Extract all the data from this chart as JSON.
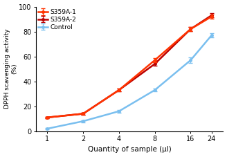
{
  "x": [
    1,
    2,
    4,
    8,
    16,
    24
  ],
  "s359a1_y": [
    11,
    14,
    33,
    57,
    82,
    92
  ],
  "s359a1_err": [
    0.5,
    0.8,
    1.2,
    1.5,
    1.5,
    1.8
  ],
  "s359a2_y": [
    11,
    14,
    33,
    54,
    82,
    93
  ],
  "s359a2_err": [
    0.5,
    0.8,
    1.2,
    1.5,
    1.5,
    1.8
  ],
  "control_y": [
    2,
    8,
    16,
    33,
    57,
    77
  ],
  "control_err": [
    0.4,
    0.8,
    1.0,
    1.0,
    2.2,
    1.5
  ],
  "s359a1_color": "#FF3300",
  "s359a2_color": "#BB0000",
  "control_color": "#7ABFEF",
  "xlabel": "Quantity of sample (μl)",
  "ylabel": "DPPH scavenging activity\n(%)",
  "ylim": [
    0,
    100
  ],
  "yticks": [
    0,
    20,
    40,
    60,
    80,
    100
  ],
  "legend_labels": [
    "S359A-1",
    "S359A-2",
    "Control"
  ],
  "linewidth": 1.8,
  "marker": "o",
  "markersize": 2.5,
  "capsize": 2,
  "elinewidth": 0.8
}
